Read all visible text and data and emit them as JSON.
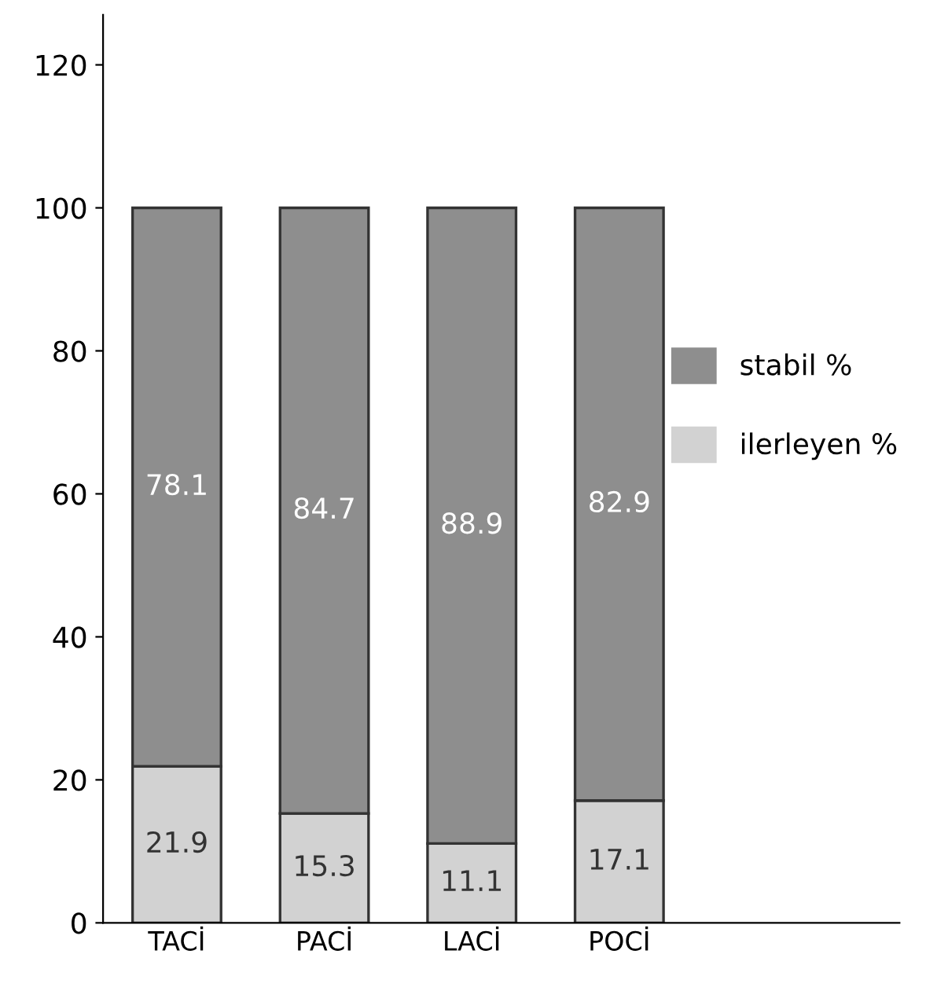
{
  "chart_data": {
    "type": "bar",
    "stacked": true,
    "categories": [
      "TACİ",
      "PACİ",
      "LACİ",
      "POCİ"
    ],
    "series": [
      {
        "name": "ilerleyen %",
        "color": "#d2d2d2",
        "values": [
          21.9,
          15.3,
          11.1,
          17.1
        ]
      },
      {
        "name": "stabil %",
        "color": "#8e8e8e",
        "values": [
          78.1,
          84.7,
          88.9,
          82.9
        ]
      }
    ],
    "ylim": [
      0,
      127
    ],
    "yticks": [
      0,
      20,
      40,
      60,
      80,
      100,
      120
    ],
    "data_labels": true,
    "legend": "right",
    "grid": false
  }
}
